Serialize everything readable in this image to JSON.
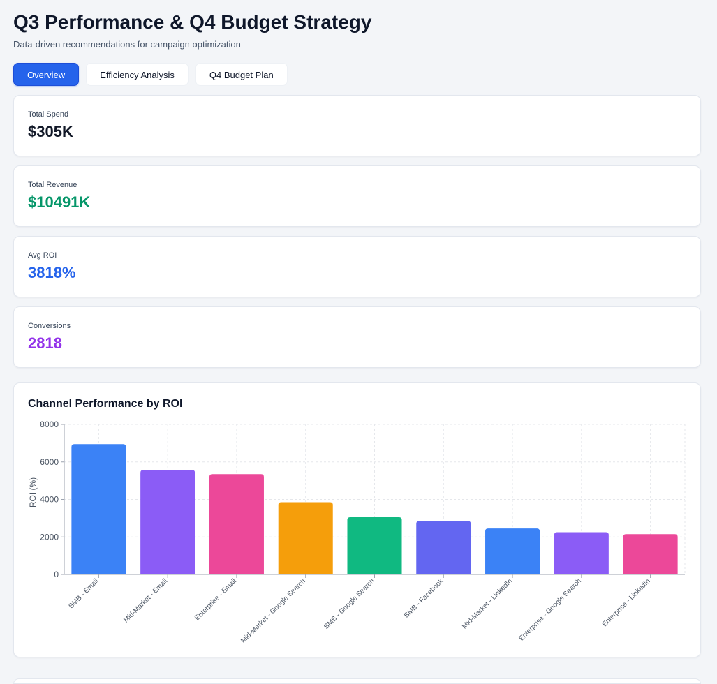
{
  "header": {
    "title": "Q3 Performance & Q4 Budget Strategy",
    "subtitle": "Data-driven recommendations for campaign optimization"
  },
  "tabs": [
    {
      "label": "Overview",
      "active": true
    },
    {
      "label": "Efficiency Analysis",
      "active": false
    },
    {
      "label": "Q4 Budget Plan",
      "active": false
    }
  ],
  "stats": [
    {
      "label": "Total Spend",
      "value": "$305K",
      "color": "#111827"
    },
    {
      "label": "Total Revenue",
      "value": "$10491K",
      "color": "#059669"
    },
    {
      "label": "Avg ROI",
      "value": "3818%",
      "color": "#2563eb"
    },
    {
      "label": "Conversions",
      "value": "2818",
      "color": "#9333ea"
    }
  ],
  "chart_data": {
    "type": "bar",
    "title": "Channel Performance by ROI",
    "xlabel": "",
    "ylabel": "ROI (%)",
    "ylim": [
      0,
      8000
    ],
    "yticks": [
      0,
      2000,
      4000,
      6000,
      8000
    ],
    "grid": true,
    "categories": [
      "SMB - Email",
      "Mid-Market - Email",
      "Enterprise - Email",
      "Mid-Market - Google Search",
      "SMB - Google Search",
      "SMB - Facebook",
      "Mid-Market - LinkedIn",
      "Enterprise - Google Search",
      "Enterprise - LinkedIn"
    ],
    "values": [
      6950,
      5570,
      5350,
      3850,
      3050,
      2850,
      2450,
      2250,
      2150
    ],
    "colors": [
      "#3b82f6",
      "#8b5cf6",
      "#ec4899",
      "#f59e0b",
      "#10b981",
      "#6366f1",
      "#3b82f6",
      "#8b5cf6",
      "#ec4899"
    ]
  }
}
